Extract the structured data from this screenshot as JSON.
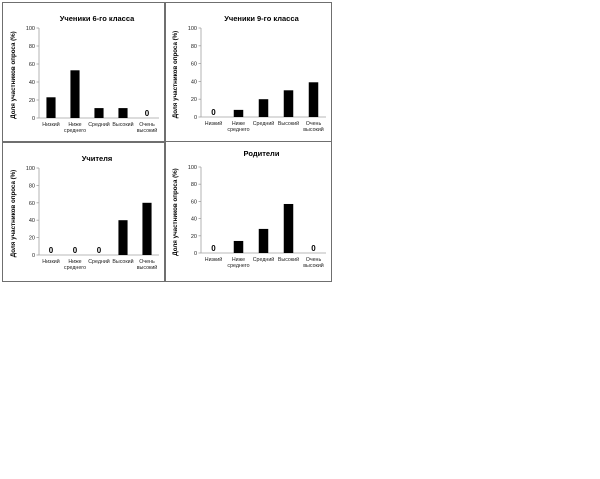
{
  "chart_data": [
    {
      "type": "bar",
      "title": "Ученики 6-го класса",
      "ylabel": "Доля участников опроса (%)",
      "categories": [
        [
          "Низкий"
        ],
        [
          "Ниже",
          "среднего"
        ],
        [
          "Средний"
        ],
        [
          "Высокий"
        ],
        [
          "Очень",
          "высокий"
        ]
      ],
      "values": [
        23,
        53,
        11,
        11,
        0
      ],
      "data_labels": [
        "",
        "",
        "",
        "",
        "0"
      ],
      "ylim": [
        0,
        100
      ],
      "yticks": [
        0,
        20,
        40,
        60,
        80,
        100
      ],
      "bar_color": "#000000",
      "axis_color": "#a0a0a0",
      "grid": false,
      "legend": "none"
    },
    {
      "type": "bar",
      "title": "Ученики 9-го класса",
      "ylabel": "Доля участников опроса (%)",
      "categories": [
        [
          "Низкий"
        ],
        [
          "Ниже",
          "среднего"
        ],
        [
          "Средний"
        ],
        [
          "Высокий"
        ],
        [
          "Очень",
          "высокий"
        ]
      ],
      "values": [
        0,
        8,
        20,
        30,
        39
      ],
      "data_labels": [
        "0",
        "",
        "",
        "",
        ""
      ],
      "ylim": [
        0,
        100
      ],
      "yticks": [
        0,
        20,
        40,
        60,
        80,
        100
      ],
      "bar_color": "#000000",
      "axis_color": "#a0a0a0",
      "grid": false,
      "legend": "none"
    },
    {
      "type": "bar",
      "title": "Учителя",
      "ylabel": "Доля участников опроса (%)",
      "categories": [
        [
          "Низкий"
        ],
        [
          "Ниже",
          "среднего"
        ],
        [
          "Средний"
        ],
        [
          "Высокий"
        ],
        [
          "Очень",
          "высокий"
        ]
      ],
      "values": [
        0,
        0,
        0,
        40,
        60
      ],
      "data_labels": [
        "0",
        "0",
        "0",
        "",
        ""
      ],
      "ylim": [
        0,
        100
      ],
      "yticks": [
        0,
        20,
        40,
        60,
        80,
        100
      ],
      "bar_color": "#000000",
      "axis_color": "#a0a0a0",
      "grid": false,
      "legend": "none"
    },
    {
      "type": "bar",
      "title": "Родители",
      "ylabel": "Доля участников опроса (%)",
      "categories": [
        [
          "Низкий"
        ],
        [
          "Ниже",
          "среднего"
        ],
        [
          "Средний"
        ],
        [
          "Высокий"
        ],
        [
          "Очень",
          "высокий"
        ]
      ],
      "values": [
        0,
        14,
        28,
        57,
        0
      ],
      "data_labels": [
        "0",
        "",
        "",
        "",
        "0"
      ],
      "ylim": [
        0,
        100
      ],
      "yticks": [
        0,
        20,
        40,
        60,
        80,
        100
      ],
      "bar_color": "#000000",
      "axis_color": "#a0a0a0",
      "grid": false,
      "legend": "none"
    }
  ]
}
